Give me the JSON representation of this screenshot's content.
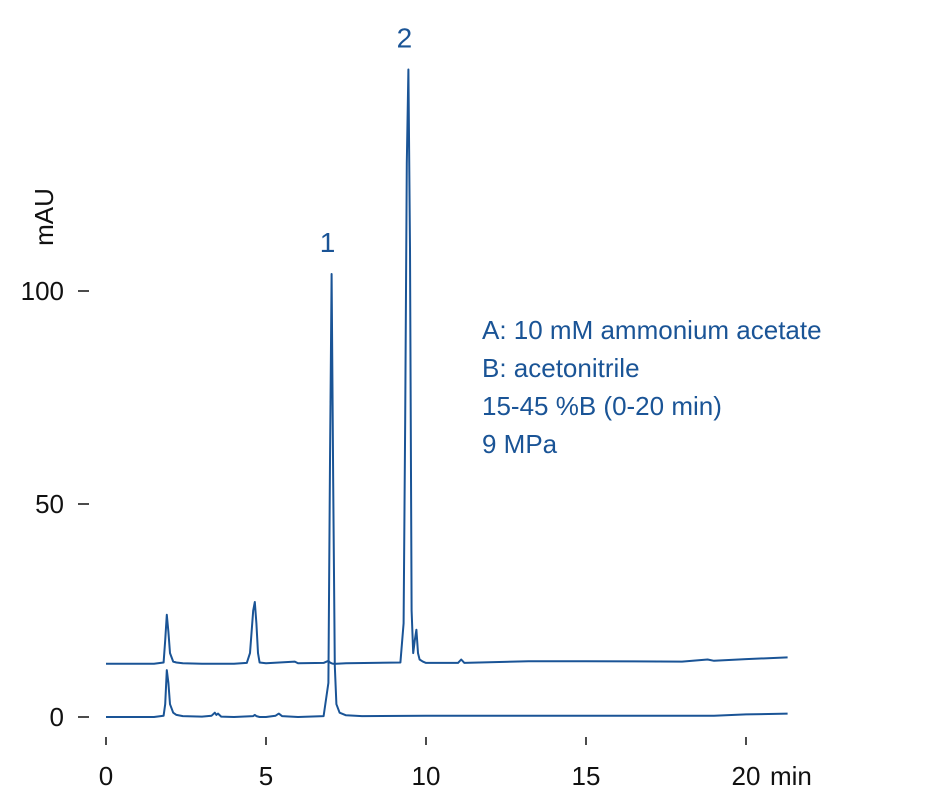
{
  "chart_data": {
    "type": "line",
    "title": "",
    "xlabel": "min",
    "ylabel": "mAU",
    "xlim": [
      0,
      21.3
    ],
    "ylim": [
      0,
      140
    ],
    "x_ticks": [
      0,
      5,
      10,
      15,
      20
    ],
    "x_tick_labels": [
      "0",
      "5",
      "10",
      "15",
      "20"
    ],
    "y_ticks": [
      0,
      50,
      100
    ],
    "y_tick_labels": [
      "0",
      "50",
      "100"
    ],
    "line_color": "#1a5496",
    "grid": false,
    "legend": "none",
    "series": [
      {
        "x": [
          0,
          1.5,
          1.8,
          1.85,
          1.9,
          1.95,
          2.0,
          2.1,
          2.2,
          2.4,
          3.0,
          3.3,
          3.4,
          3.45,
          3.5,
          3.6,
          4.0,
          4.6,
          4.65,
          4.7,
          4.8,
          5.0,
          5.3,
          5.4,
          5.5,
          6.0,
          6.8,
          6.95,
          7.0,
          7.05,
          7.1,
          7.15,
          7.2,
          7.3,
          7.5,
          8.0,
          10.0,
          15.0,
          19.0,
          20.0,
          21.3
        ],
        "y": [
          0,
          0,
          0.3,
          3,
          11,
          8,
          3,
          1,
          0.5,
          0.2,
          0.1,
          0.3,
          1,
          0.5,
          0.8,
          0.1,
          0,
          0.2,
          0.5,
          0.2,
          0,
          0,
          0.3,
          0.8,
          0.2,
          0,
          0.2,
          8,
          60,
          104,
          55,
          12,
          3,
          1,
          0.4,
          0.2,
          0.3,
          0.3,
          0.3,
          0.6,
          0.8
        ]
      },
      {
        "x": [
          0,
          1.5,
          1.8,
          1.85,
          1.9,
          1.95,
          2.0,
          2.1,
          2.2,
          2.4,
          3.0,
          4.0,
          4.4,
          4.5,
          4.6,
          4.65,
          4.7,
          4.75,
          4.8,
          5.0,
          5.9,
          6.0,
          6.8,
          6.95,
          7.0,
          7.05,
          7.1,
          7.2,
          7.5,
          9.2,
          9.3,
          9.35,
          9.4,
          9.45,
          9.5,
          9.55,
          9.6,
          9.65,
          9.7,
          9.75,
          9.8,
          9.9,
          10.0,
          11.0,
          11.1,
          11.2,
          13.2,
          15.0,
          18.0,
          18.8,
          19.0,
          20.0,
          21.3
        ],
        "y": [
          12.5,
          12.5,
          12.8,
          18,
          24,
          20,
          15,
          13,
          12.8,
          12.6,
          12.5,
          12.5,
          12.7,
          15,
          25,
          27,
          22,
          15,
          12.8,
          12.6,
          13,
          12.6,
          12.7,
          13.2,
          12.8,
          12.6,
          12.5,
          12.5,
          12.6,
          12.8,
          22,
          70,
          130,
          152,
          110,
          25,
          15,
          18,
          20.5,
          15,
          13.5,
          13,
          12.7,
          12.7,
          13.5,
          12.7,
          13.1,
          13.1,
          13,
          13.5,
          13.2,
          13.6,
          14
        ]
      }
    ],
    "peak_labels": [
      {
        "text": "1",
        "x": 7.05,
        "y": 104
      },
      {
        "text": "2",
        "x": 9.45,
        "y": 152
      }
    ],
    "annotations": [
      "A: 10 mM ammonium acetate",
      "B: acetonitrile",
      "15-45 %B (0-20 min)",
      "9 MPa"
    ]
  }
}
